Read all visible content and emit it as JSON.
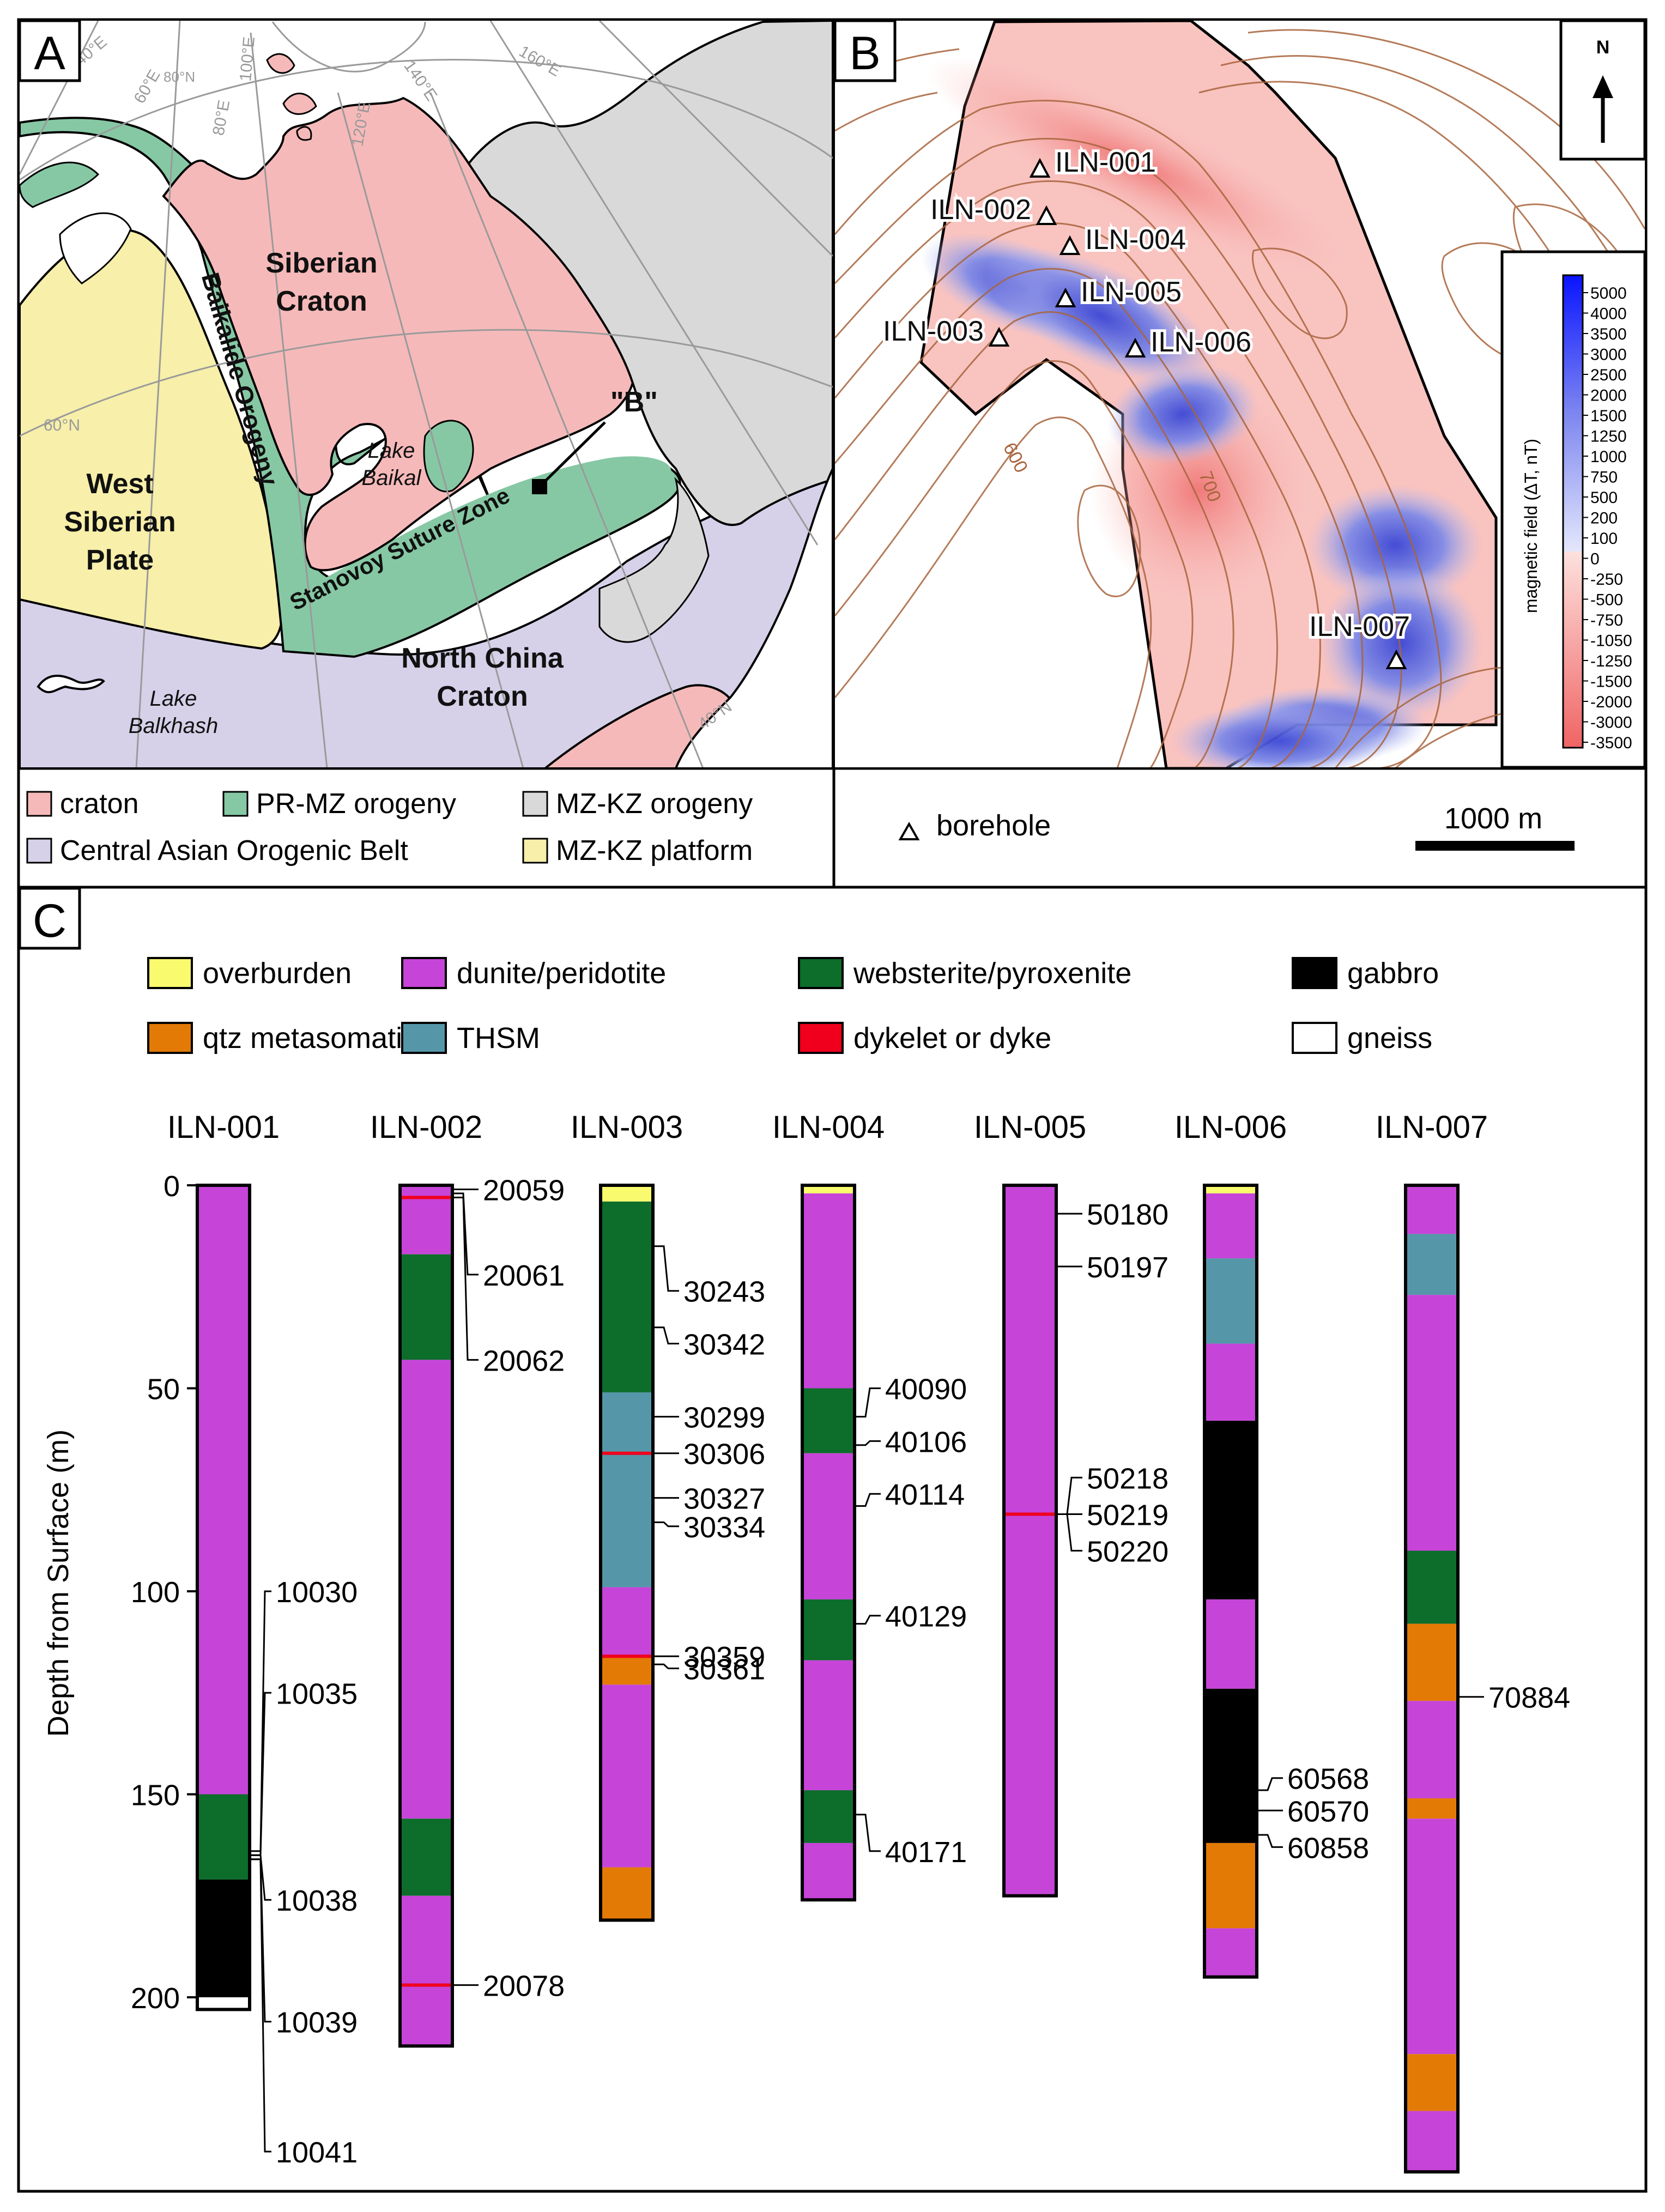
{
  "panel_a": {
    "label": "A",
    "longitude_labels": [
      "40°E",
      "60°E",
      "80°N",
      "80°E",
      "100°E",
      "120°E",
      "140°E",
      "160°E"
    ],
    "latitude_labels": [
      "60°N",
      "40°N"
    ],
    "regions": {
      "siberian_craton": [
        "Siberian",
        "Craton"
      ],
      "west_siberian_plate": [
        "West",
        "Siberian",
        "Plate"
      ],
      "north_china_craton": [
        "North China",
        "Craton"
      ],
      "baikalide_orogeny": "Baikalide Orogeny",
      "stanovoy_suture_zone": "Stanovoy Suture Zone"
    },
    "lakes": {
      "baikal": [
        "Lake",
        "Baikal"
      ],
      "balkhash": [
        "Lake",
        "Balkhash"
      ]
    },
    "location_marker": "\"B\"",
    "legend": [
      {
        "label": "craton",
        "color": "#f6b9b9"
      },
      {
        "label": "PR-MZ orogeny",
        "color": "#86c8a4"
      },
      {
        "label": "MZ-KZ orogeny",
        "color": "#d9d9d9"
      },
      {
        "label": "Central Asian Orogenic Belt",
        "color": "#d6d1e9"
      },
      {
        "label": "MZ-KZ platform",
        "color": "#f7efaa"
      }
    ]
  },
  "panel_b": {
    "label": "B",
    "north": "N",
    "boreholes": [
      "ILN-001",
      "ILN-002",
      "ILN-003",
      "ILN-004",
      "ILN-005",
      "ILN-006",
      "ILN-007"
    ],
    "contour_labels": [
      "600",
      "700"
    ],
    "legend_borehole": "borehole",
    "scale_bar": "1000 m",
    "colorbar": {
      "title": "magnetic field (ΔT, nT)",
      "ticks": [
        "5000",
        "4000",
        "3500",
        "3000",
        "2500",
        "2000",
        "1500",
        "1250",
        "1000",
        "750",
        "500",
        "200",
        "100",
        "0",
        "-250",
        "-500",
        "-750",
        "-1050",
        "-1250",
        "-1500",
        "-2000",
        "-3000",
        "-3500"
      ]
    }
  },
  "panel_c": {
    "label": "C",
    "y_axis_title": "Depth from Surface (m)",
    "y_ticks": [
      "0",
      "50",
      "100",
      "150",
      "200"
    ],
    "legend": [
      {
        "key": "overburden",
        "label": "overburden",
        "color": "#fafa6e"
      },
      {
        "key": "dunite",
        "label": "dunite/peridotite",
        "color": "#c644d8"
      },
      {
        "key": "websterite",
        "label": "websterite/pyroxenite",
        "color": "#0d6d2b"
      },
      {
        "key": "gabbro",
        "label": "gabbro",
        "color": "#000000"
      },
      {
        "key": "qtz",
        "label": "qtz metasomatite",
        "color": "#e37a05"
      },
      {
        "key": "thsm",
        "label": "THSM",
        "color": "#5597a9"
      },
      {
        "key": "dyke",
        "label": "dykelet or dyke",
        "color": "#f0001c"
      },
      {
        "key": "gneiss",
        "label": "gneiss",
        "color": "#ffffff"
      }
    ],
    "boreholes": [
      {
        "name": "ILN-001",
        "intervals": [
          [
            "dunite",
            0,
            150
          ],
          [
            "websterite",
            150,
            171
          ],
          [
            "gabbro",
            171,
            200
          ],
          [
            "gneiss",
            200,
            203
          ]
        ],
        "dykes": [],
        "samples": [
          [
            "10030",
            164,
            100
          ],
          [
            "10035",
            165,
            125
          ],
          [
            "10038",
            165,
            176
          ],
          [
            "10039",
            166,
            206
          ],
          [
            "10041",
            166,
            238
          ]
        ]
      },
      {
        "name": "ILN-002",
        "intervals": [
          [
            "dunite",
            0,
            17
          ],
          [
            "websterite",
            17,
            43
          ],
          [
            "dunite",
            43,
            156
          ],
          [
            "websterite",
            156,
            175
          ],
          [
            "dunite",
            175,
            212
          ]
        ],
        "dykes": [
          3,
          197
        ],
        "samples": [
          [
            "20059",
            1,
            1
          ],
          [
            "20061",
            2,
            22
          ],
          [
            "20062",
            3,
            43
          ],
          [
            "20078",
            197,
            197
          ]
        ]
      },
      {
        "name": "ILN-003",
        "intervals": [
          [
            "overburden",
            0,
            4
          ],
          [
            "websterite",
            4,
            51
          ],
          [
            "thsm",
            51,
            99
          ],
          [
            "dunite",
            99,
            116
          ],
          [
            "qtz",
            116,
            123
          ],
          [
            "dunite",
            123,
            168
          ],
          [
            "qtz",
            168,
            181
          ]
        ],
        "dykes": [
          66,
          116
        ],
        "samples": [
          [
            "30243",
            15,
            26
          ],
          [
            "30342",
            35,
            39
          ],
          [
            "30299",
            57,
            57
          ],
          [
            "30306",
            66,
            66
          ],
          [
            "30327",
            77,
            77
          ],
          [
            "30334",
            83,
            84
          ],
          [
            "30359",
            116,
            116
          ],
          [
            "30361",
            118,
            119
          ]
        ]
      },
      {
        "name": "ILN-004",
        "intervals": [
          [
            "overburden",
            0,
            2
          ],
          [
            "dunite",
            2,
            50
          ],
          [
            "websterite",
            50,
            66
          ],
          [
            "dunite",
            66,
            102
          ],
          [
            "websterite",
            102,
            117
          ],
          [
            "dunite",
            117,
            149
          ],
          [
            "websterite",
            149,
            162
          ],
          [
            "dunite",
            162,
            176
          ]
        ],
        "dykes": [],
        "samples": [
          [
            "40090",
            57,
            50
          ],
          [
            "40106",
            64,
            63
          ],
          [
            "40114",
            79,
            76
          ],
          [
            "40129",
            108,
            106
          ],
          [
            "40171",
            155,
            164
          ]
        ]
      },
      {
        "name": "ILN-005",
        "intervals": [
          [
            "dunite",
            0,
            175
          ]
        ],
        "dykes": [
          81
        ],
        "samples": [
          [
            "50180",
            7,
            7
          ],
          [
            "50197",
            20,
            20
          ],
          [
            "50218",
            81,
            72
          ],
          [
            "50219",
            81,
            81
          ],
          [
            "50220",
            81,
            90
          ]
        ]
      },
      {
        "name": "ILN-006",
        "intervals": [
          [
            "overburden",
            0,
            2
          ],
          [
            "dunite",
            2,
            18
          ],
          [
            "thsm",
            18,
            39
          ],
          [
            "dunite",
            39,
            58
          ],
          [
            "gabbro",
            58,
            102
          ],
          [
            "dunite",
            102,
            124
          ],
          [
            "gabbro",
            124,
            162
          ],
          [
            "qtz",
            162,
            183
          ],
          [
            "dunite",
            183,
            195
          ]
        ],
        "dykes": [],
        "samples": [
          [
            "60568",
            149,
            146
          ],
          [
            "60570",
            154,
            154
          ],
          [
            "60858",
            160,
            163
          ]
        ]
      },
      {
        "name": "ILN-007",
        "intervals": [
          [
            "dunite",
            0,
            12
          ],
          [
            "thsm",
            12,
            27
          ],
          [
            "dunite",
            27,
            90
          ],
          [
            "websterite",
            90,
            108
          ],
          [
            "qtz",
            108,
            127
          ],
          [
            "dunite",
            127,
            151
          ],
          [
            "qtz",
            151,
            156
          ],
          [
            "dunite",
            156,
            214
          ],
          [
            "qtz",
            214,
            228
          ],
          [
            "dunite",
            228,
            243
          ]
        ],
        "dykes": [],
        "samples": [
          [
            "70884",
            126,
            126
          ]
        ]
      }
    ]
  }
}
